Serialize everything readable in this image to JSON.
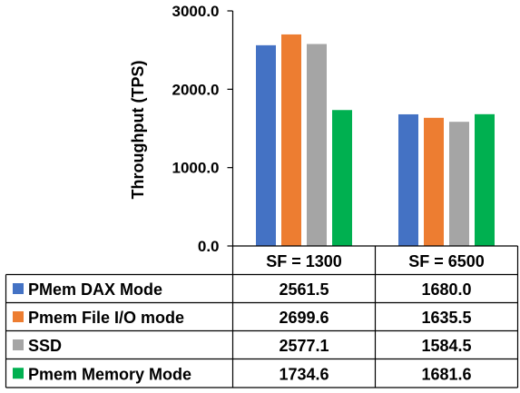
{
  "chart_data": {
    "type": "bar",
    "title": "",
    "xlabel": "",
    "ylabel": "Throughput (TPS)",
    "ylim": [
      0,
      3000
    ],
    "yticks": [
      "0.0",
      "1000.0",
      "2000.0",
      "3000.0"
    ],
    "ytick_values": [
      0,
      1000,
      2000,
      3000
    ],
    "grid": false,
    "legend": "left-of-data-table",
    "categories": [
      "SF = 1300",
      "SF = 6500"
    ],
    "series": [
      {
        "name": "PMem DAX Mode",
        "color": "#4472C4",
        "values": [
          2561.5,
          1680.0
        ],
        "labels": [
          "2561.5",
          "1680.0"
        ]
      },
      {
        "name": "Pmem File I/O mode",
        "color": "#ED7D31",
        "values": [
          2699.6,
          1635.5
        ],
        "labels": [
          "2699.6",
          "1635.5"
        ]
      },
      {
        "name": "SSD",
        "color": "#A5A5A5",
        "values": [
          2577.1,
          1584.5
        ],
        "labels": [
          "2577.1",
          "1584.5"
        ]
      },
      {
        "name": "Pmem Memory Mode",
        "color": "#00B050",
        "values": [
          1734.6,
          1681.6
        ],
        "labels": [
          "1734.6",
          "1681.6"
        ]
      }
    ]
  }
}
